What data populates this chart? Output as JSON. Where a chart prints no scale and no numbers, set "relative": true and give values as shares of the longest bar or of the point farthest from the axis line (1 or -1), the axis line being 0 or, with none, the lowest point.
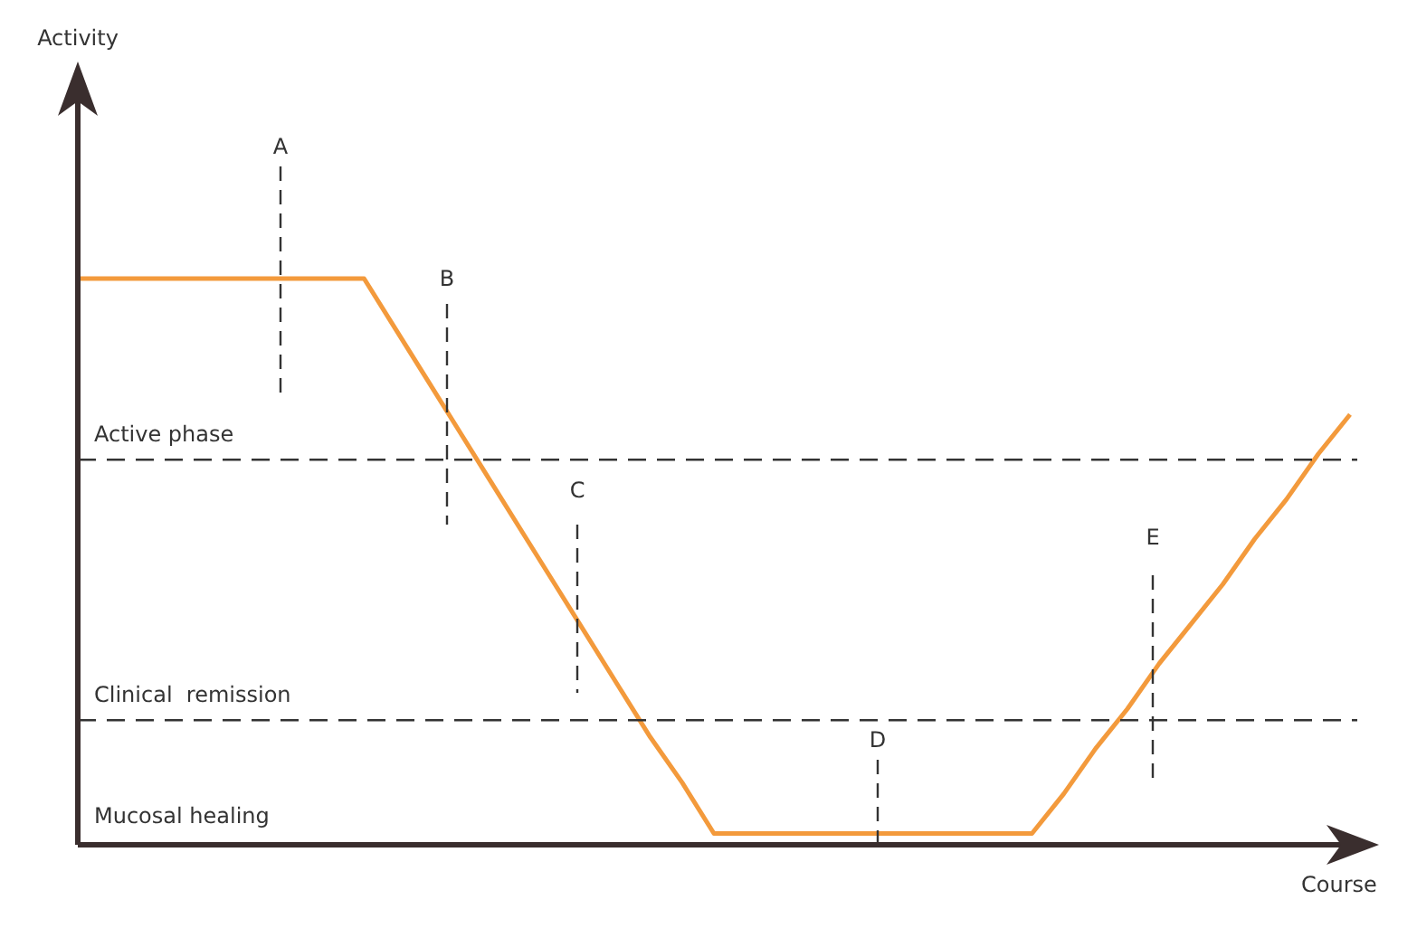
{
  "chart_data": {
    "type": "line",
    "xlabel": "Course",
    "relative": true,
    "marker": "none",
    "categories": [
      null,
      null,
      null,
      null,
      null,
      null,
      null,
      null,
      null,
      null,
      null,
      null,
      null,
      null,
      null,
      null,
      null,
      null,
      null,
      null,
      null,
      null,
      null,
      null,
      null,
      null,
      null,
      null,
      null,
      null,
      null,
      null,
      null,
      null,
      null,
      null,
      null,
      null,
      null,
      null,
      null
    ],
    "series": [
      {
        "color": "#f39a3c",
        "values": [
          1,
          1,
          1,
          1,
          1,
          1,
          1,
          1,
          1,
          1,
          0.91,
          0.82,
          0.73,
          0.64,
          0.55,
          0.46,
          0.37,
          0.28,
          0.19,
          0.11,
          0.02,
          0.02,
          0.02,
          0.02,
          0.02,
          0.02,
          0.02,
          0.02,
          0.02,
          0.02,
          0.02,
          0.09,
          0.17,
          0.24,
          0.32,
          0.39,
          0.46,
          0.54,
          0.61,
          0.69,
          0.76
        ]
      }
    ],
    "ref_lines": [
      {
        "axis": "y",
        "value": 0.68,
        "label": "Active phase",
        "line_style": "dashed"
      },
      {
        "axis": "y",
        "value": 0.22,
        "label": "Clinical  remission",
        "line_style": "dashed"
      }
    ],
    "annotations": [
      "A",
      "B",
      "C",
      "D",
      "E",
      "Mucosal healing",
      "Activity"
    ]
  }
}
